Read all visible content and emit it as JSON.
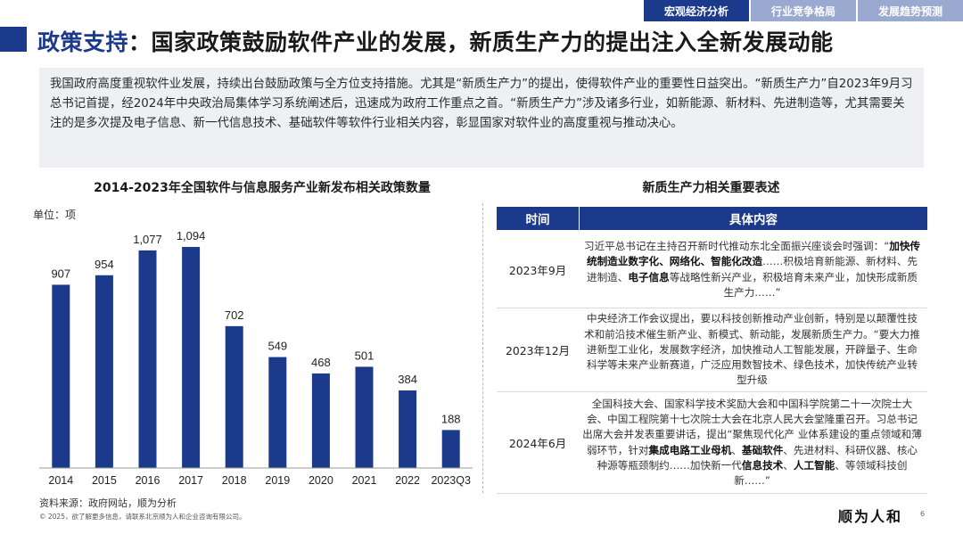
{
  "nav": {
    "tabs": [
      {
        "label": "宏观经济分析",
        "active": true
      },
      {
        "label": "行业竞争格局",
        "active": false
      },
      {
        "label": "发展趋势预测",
        "active": false
      }
    ]
  },
  "header": {
    "title_highlight": "政策支持",
    "title_rest": "：国家政策鼓励软件产业的发展，新质生产力的提出注入全新发展动能"
  },
  "intro": {
    "text": "我国政府高度重视软件业发展，持续出台鼓励政策与全方位支持措施。尤其是“新质生产力”的提出，使得软件产业的重要性日益突出。“新质生产力”自2023年9月习总书记首提，经2024年中央政治局集体学习系统阐述后，迅速成为政府工作重点之首。“新质生产力”涉及诸多行业，如新能源、新材料、先进制造等，尤其需要关注的是多次提及电子信息、新一代信息技术、基础软件等软件行业相关内容，彰显国家对软件业的高度重视与推动决心。"
  },
  "chart_data": {
    "type": "bar",
    "title": "2014-2023年全国软件与信息服务产业新发布相关政策数量",
    "unit": "单位：项",
    "categories": [
      "2014",
      "2015",
      "2016",
      "2017",
      "2018",
      "2019",
      "2020",
      "2021",
      "2022",
      "2023Q3"
    ],
    "values": [
      907,
      954,
      1077,
      1094,
      702,
      549,
      468,
      501,
      384,
      188
    ],
    "value_labels": [
      "907",
      "954",
      "1,077",
      "1,094",
      "702",
      "549",
      "468",
      "501",
      "384",
      "188"
    ],
    "ylim": [
      0,
      1200
    ],
    "grid": false,
    "bar_color": "#1c3a8c"
  },
  "source": "资料来源：政府网站，顺为分析",
  "copyright": "© 2025，欲了解更多信息，请联系北京顺为人和企业咨询有限公司。",
  "table": {
    "title": "新质生产力相关重要表述",
    "headers": [
      "时间",
      "具体内容"
    ],
    "rows": [
      {
        "date": "2023年9月",
        "segments": [
          {
            "t": "习近平总书记在主持召开新时代推动东北全面振兴座谈会时强调：“",
            "b": false
          },
          {
            "t": "加快传统制造业数字化、网络化、智能化改造",
            "b": true
          },
          {
            "t": "……积极培育新能源、新材料、先进制造、",
            "b": false
          },
          {
            "t": "电子信息",
            "b": true
          },
          {
            "t": "等战略性新兴产业，积极培育未来产业，加快形成新质生产力……”",
            "b": false
          }
        ]
      },
      {
        "date": "2023年12月",
        "segments": [
          {
            "t": "中央经济工作会议提出，要以科技创新推动产业创新，特别是以颠覆性技术和前沿技术催生新产业、新模式、新动能，发展新质生产力。“要大力推进新型工业化，发展数字经济，加快推动人工智能发展，开辟量子、生命科学等未来产业新赛道，广泛应用数智技术、绿色技术，加快传统产业转型升级",
            "b": false
          }
        ]
      },
      {
        "date": "2024年6月",
        "segments": [
          {
            "t": "全国科技大会、国家科学技术奖励大会和中国科学院第二十一次院士大会、中国工程院第十七次院士大会在北京人民大会堂隆重召开。习总书记出席大会并发表重要讲话，提出“聚焦现代化产 业体系建设的重点领域和薄弱环节，针对",
            "b": false
          },
          {
            "t": "集成电路工业母机",
            "b": true
          },
          {
            "t": "、",
            "b": false
          },
          {
            "t": "基础软件",
            "b": true
          },
          {
            "t": "、先进材料、科研仪器、核心种源等瓶颈制约……加快新一代",
            "b": false
          },
          {
            "t": "信息技术",
            "b": true
          },
          {
            "t": "、",
            "b": false
          },
          {
            "t": "人工智能",
            "b": true
          },
          {
            "t": "、等领域科技创新……”",
            "b": false
          }
        ]
      }
    ]
  },
  "brand": "顺为人和",
  "page_number": "6"
}
